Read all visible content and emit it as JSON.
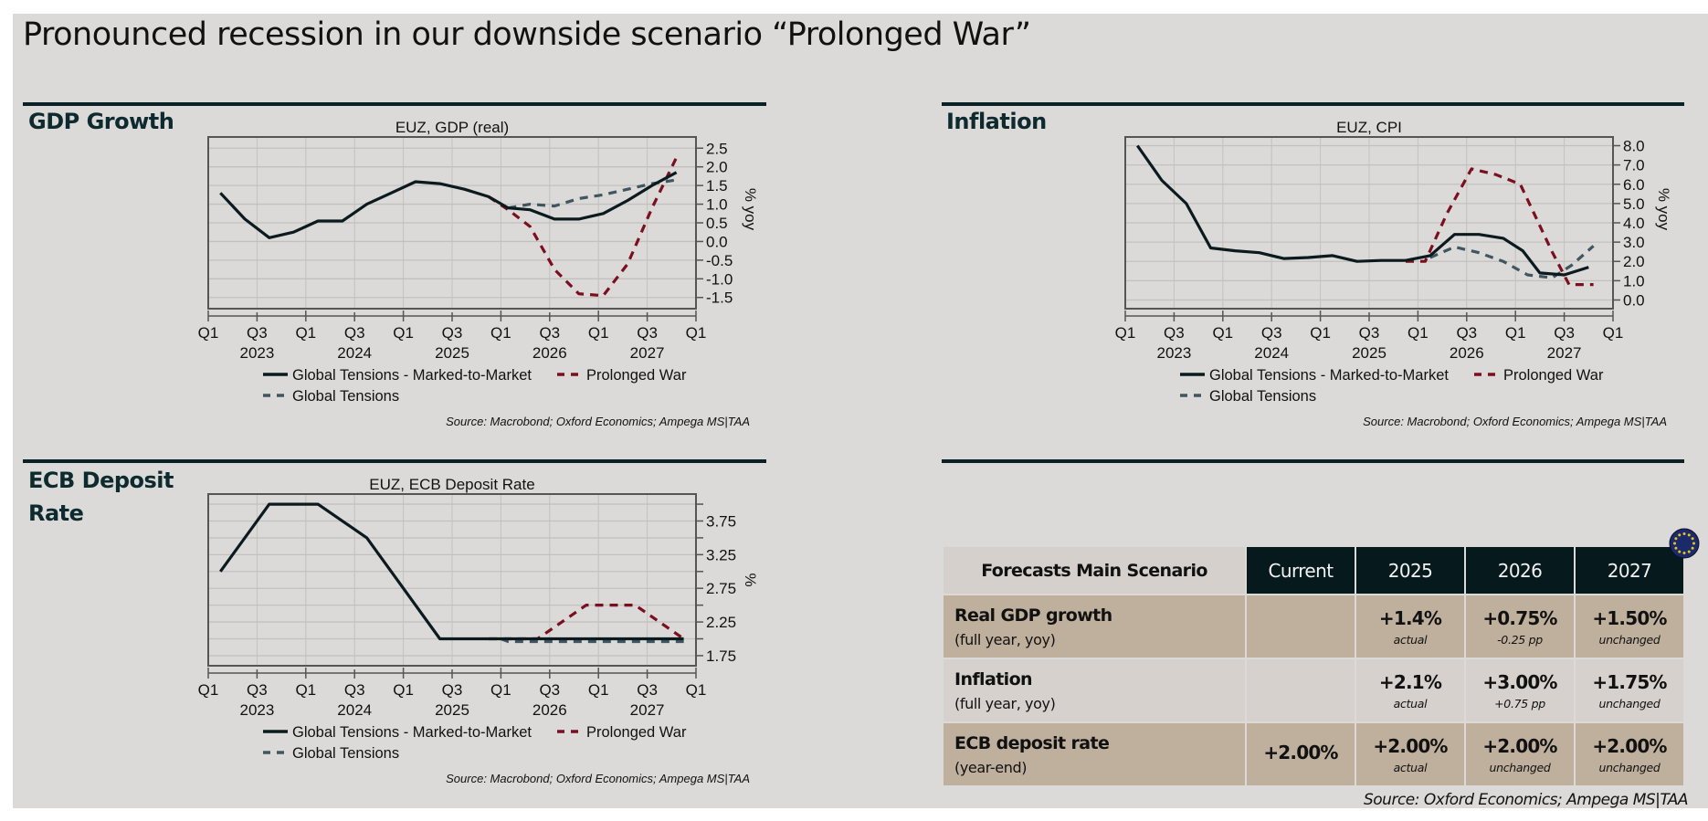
{
  "page": {
    "title": "Pronounced recession in our downside scenario “Prolonged War”"
  },
  "sections": {
    "gdp": "GDP Growth",
    "inflation": "Inflation",
    "ecb_line1": "ECB Deposit",
    "ecb_line2": "Rate"
  },
  "colors": {
    "marked_to_market": "#0b1a1e",
    "prolonged_war": "#7a0f1f",
    "global_tensions": "#3f5661",
    "grid": "#c3c1bf",
    "table_header_dark": "#061a1d",
    "table_row_tan": "#bfb09e",
    "table_row_light": "#d6d1cd"
  },
  "legend": {
    "marked_to_market": "Global Tensions - Marked-to-Market",
    "prolonged_war": "Prolonged War",
    "global_tensions": "Global Tensions"
  },
  "chart_source": "Source: Macrobond; Oxford Economics; Ampega MS|TAA",
  "chart_data": [
    {
      "id": "gdp",
      "type": "line",
      "title": "EUZ, GDP (real)",
      "xlabel": "",
      "ylabel": "% yoy",
      "x_tick_labels": [
        "Q1",
        "Q3",
        "Q1",
        "Q3",
        "Q1",
        "Q3",
        "Q1",
        "Q3",
        "Q1",
        "Q3",
        "Q1"
      ],
      "x_year_labels": [
        "2023",
        "2024",
        "2025",
        "2026",
        "2027"
      ],
      "xlim": [
        0,
        20
      ],
      "ylim": [
        -1.8,
        2.8
      ],
      "y_ticks": [
        2.5,
        2.0,
        1.5,
        1.0,
        0.5,
        0.0,
        -0.5,
        -1.0,
        -1.5
      ],
      "y_tick_labels": [
        "2.5",
        "2.0",
        "1.5",
        "1.0",
        "0.5",
        "0.0",
        "-0.5",
        "-1.0",
        "-1.5"
      ],
      "grid": true,
      "legend_position": "bottom",
      "series": [
        {
          "key": "marked_to_market",
          "name": "Global Tensions - Marked-to-Market",
          "style": "solid",
          "points": [
            [
              0.5,
              1.3
            ],
            [
              1.5,
              0.6
            ],
            [
              2.5,
              0.1
            ],
            [
              3.5,
              0.25
            ],
            [
              4.5,
              0.55
            ],
            [
              5.5,
              0.55
            ],
            [
              6.5,
              1.0
            ],
            [
              7.5,
              1.3
            ],
            [
              8.5,
              1.6
            ],
            [
              9.5,
              1.55
            ],
            [
              10.5,
              1.4
            ],
            [
              11.5,
              1.2
            ],
            [
              12.3,
              0.9
            ],
            [
              13.2,
              0.85
            ],
            [
              14.2,
              0.6
            ],
            [
              15.2,
              0.6
            ],
            [
              16.2,
              0.75
            ],
            [
              17.2,
              1.1
            ],
            [
              18.2,
              1.5
            ],
            [
              19.2,
              1.85
            ]
          ]
        },
        {
          "key": "prolonged_war",
          "name": "Prolonged War",
          "style": "dashed",
          "points": [
            [
              11.5,
              1.2
            ],
            [
              12.3,
              0.85
            ],
            [
              13.2,
              0.4
            ],
            [
              14.2,
              -0.75
            ],
            [
              15.2,
              -1.4
            ],
            [
              16.2,
              -1.45
            ],
            [
              17.2,
              -0.6
            ],
            [
              18.2,
              0.9
            ],
            [
              19.2,
              2.25
            ]
          ]
        },
        {
          "key": "global_tensions",
          "name": "Global Tensions",
          "style": "dashed",
          "points": [
            [
              12.3,
              0.9
            ],
            [
              13.2,
              1.0
            ],
            [
              14.2,
              0.95
            ],
            [
              15.2,
              1.15
            ],
            [
              16.2,
              1.25
            ],
            [
              17.2,
              1.4
            ],
            [
              18.2,
              1.55
            ],
            [
              19.2,
              1.65
            ]
          ]
        }
      ]
    },
    {
      "id": "inflation",
      "type": "line",
      "title": "EUZ, CPI",
      "xlabel": "",
      "ylabel": "% yoy",
      "x_tick_labels": [
        "Q1",
        "Q3",
        "Q1",
        "Q3",
        "Q1",
        "Q3",
        "Q1",
        "Q3",
        "Q1",
        "Q3",
        "Q1"
      ],
      "x_year_labels": [
        "2023",
        "2024",
        "2025",
        "2026",
        "2027"
      ],
      "xlim": [
        0,
        20
      ],
      "ylim": [
        -0.45,
        8.45
      ],
      "y_ticks": [
        8.0,
        7.0,
        6.0,
        5.0,
        4.0,
        3.0,
        2.0,
        1.0,
        0.0
      ],
      "y_tick_labels": [
        "8.0",
        "7.0",
        "6.0",
        "5.0",
        "4.0",
        "3.0",
        "2.0",
        "1.0",
        "0.0"
      ],
      "grid": true,
      "legend_position": "bottom",
      "series": [
        {
          "key": "marked_to_market",
          "name": "Global Tensions - Marked-to-Market",
          "style": "solid",
          "points": [
            [
              0.5,
              8.0
            ],
            [
              1.5,
              6.2
            ],
            [
              2.5,
              5.0
            ],
            [
              3.5,
              2.7
            ],
            [
              4.5,
              2.55
            ],
            [
              5.5,
              2.45
            ],
            [
              6.5,
              2.15
            ],
            [
              7.5,
              2.2
            ],
            [
              8.5,
              2.3
            ],
            [
              9.5,
              2.0
            ],
            [
              10.5,
              2.05
            ],
            [
              11.5,
              2.05
            ],
            [
              12.5,
              2.3
            ],
            [
              13.5,
              3.4
            ],
            [
              14.5,
              3.4
            ],
            [
              15.5,
              3.2
            ],
            [
              16.3,
              2.55
            ],
            [
              17.0,
              1.4
            ],
            [
              18.0,
              1.3
            ],
            [
              19.0,
              1.7
            ]
          ]
        },
        {
          "key": "prolonged_war",
          "name": "Prolonged War",
          "style": "dashed",
          "points": [
            [
              11.5,
              2.0
            ],
            [
              12.3,
              2.0
            ],
            [
              13.2,
              4.5
            ],
            [
              14.2,
              6.8
            ],
            [
              15.2,
              6.5
            ],
            [
              16.2,
              6.0
            ],
            [
              17.5,
              2.5
            ],
            [
              18.2,
              0.8
            ],
            [
              19.2,
              0.8
            ]
          ]
        },
        {
          "key": "global_tensions",
          "name": "Global Tensions",
          "style": "dashed",
          "points": [
            [
              12.5,
              2.2
            ],
            [
              13.5,
              2.75
            ],
            [
              14.5,
              2.45
            ],
            [
              15.5,
              2.0
            ],
            [
              16.5,
              1.3
            ],
            [
              17.5,
              1.15
            ],
            [
              18.3,
              1.8
            ],
            [
              19.2,
              2.8
            ]
          ]
        }
      ]
    },
    {
      "id": "ecb",
      "type": "line",
      "title": "EUZ, ECB Deposit Rate",
      "xlabel": "",
      "ylabel": "%",
      "x_tick_labels": [
        "Q1",
        "Q3",
        "Q1",
        "Q3",
        "Q1",
        "Q3",
        "Q1",
        "Q3",
        "Q1",
        "Q3",
        "Q1"
      ],
      "x_year_labels": [
        "2023",
        "2024",
        "2025",
        "2026",
        "2027"
      ],
      "xlim": [
        0,
        20
      ],
      "ylim": [
        1.6,
        4.15
      ],
      "y_ticks": [
        4.0,
        3.75,
        3.5,
        3.25,
        3.0,
        2.75,
        2.5,
        2.25,
        2.0,
        1.75
      ],
      "y_tick_labels": [
        "",
        "3.75",
        "",
        "3.25",
        "",
        "2.75",
        "",
        "2.25",
        "",
        "1.75"
      ],
      "grid": true,
      "legend_position": "bottom",
      "series": [
        {
          "key": "marked_to_market",
          "name": "Global Tensions - Marked-to-Market",
          "style": "solid",
          "points": [
            [
              0.5,
              3.0
            ],
            [
              2.5,
              4.0
            ],
            [
              4.5,
              4.0
            ],
            [
              6.5,
              3.5
            ],
            [
              9.5,
              2.0
            ],
            [
              19.5,
              2.0
            ]
          ]
        },
        {
          "key": "prolonged_war",
          "name": "Prolonged War",
          "style": "dashed",
          "points": [
            [
              11.5,
              2.0
            ],
            [
              13.5,
              2.0
            ],
            [
              15.5,
              2.5
            ],
            [
              17.5,
              2.5
            ],
            [
              19.5,
              2.0
            ]
          ]
        },
        {
          "key": "global_tensions",
          "name": "Global Tensions",
          "style": "dashed",
          "points": [
            [
              12.0,
              2.0
            ],
            [
              12.3,
              1.96
            ],
            [
              19.5,
              1.96
            ]
          ]
        }
      ]
    }
  ],
  "forecast_table": {
    "header": {
      "label": "Forecasts Main Scenario",
      "columns": [
        "Current",
        "2025",
        "2026",
        "2027"
      ]
    },
    "rows": [
      {
        "label": "Real GDP growth",
        "sublabel": "(full year, yoy)",
        "cells": [
          {
            "value": "",
            "note": ""
          },
          {
            "value": "+1.4%",
            "note": "actual"
          },
          {
            "value": "+0.75%",
            "note": "-0.25 pp"
          },
          {
            "value": "+1.50%",
            "note": "unchanged"
          }
        ]
      },
      {
        "label": "Inflation",
        "sublabel": "(full year, yoy)",
        "cells": [
          {
            "value": "",
            "note": ""
          },
          {
            "value": "+2.1%",
            "note": "actual"
          },
          {
            "value": "+3.00%",
            "note": "+0.75 pp"
          },
          {
            "value": "+1.75%",
            "note": "unchanged"
          }
        ]
      },
      {
        "label": "ECB deposit rate",
        "sublabel": "(year-end)",
        "cells": [
          {
            "value": "+2.00%",
            "note": ""
          },
          {
            "value": "+2.00%",
            "note": "actual"
          },
          {
            "value": "+2.00%",
            "note": "unchanged"
          },
          {
            "value": "+2.00%",
            "note": "unchanged"
          }
        ]
      }
    ],
    "source": "Source: Oxford Economics; Ampega MS|TAA",
    "flag_icon": "eu-flag-icon"
  }
}
